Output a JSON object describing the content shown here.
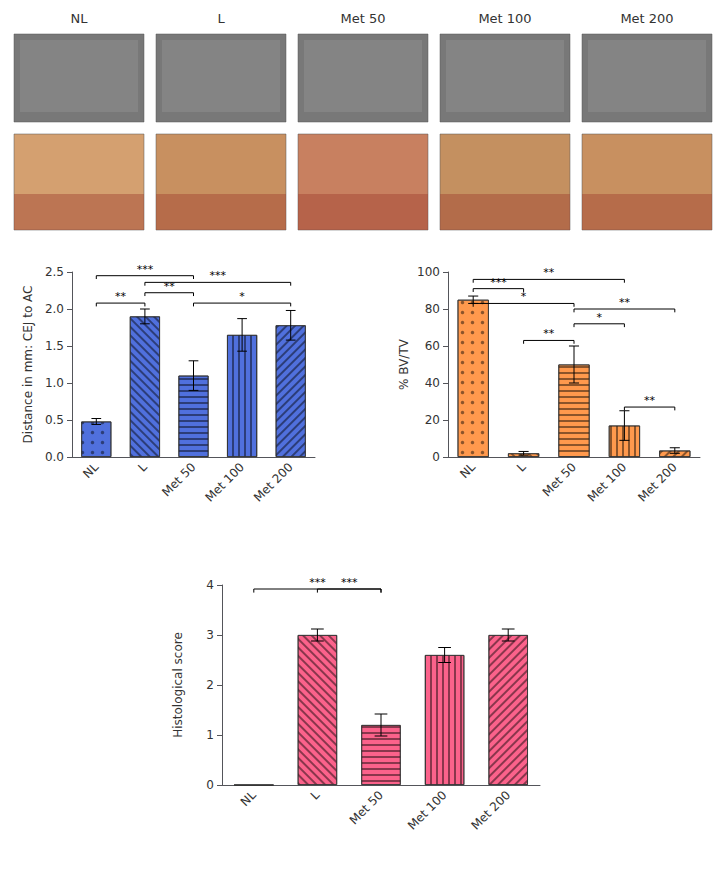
{
  "chart_data": [
    {
      "type": "image_panel",
      "annotations": [
        "NL",
        "L",
        "Met 50",
        "Met 100",
        "Met 200"
      ]
    },
    {
      "type": "bar",
      "categories": [
        "NL",
        "L",
        "Met 50",
        "Met 100",
        "Met 200"
      ],
      "values": [
        0.48,
        1.9,
        1.1,
        1.65,
        1.78
      ],
      "errors": [
        0.04,
        0.1,
        0.2,
        0.22,
        0.2
      ],
      "ylabel": "Distance in mm: CEJ to AC",
      "ylim": [
        0,
        2.5
      ],
      "yticks": [
        {
          "value": 0,
          "label": "0.0"
        },
        0.5,
        {
          "value": 1,
          "label": "1.0"
        },
        1.5,
        {
          "value": 2,
          "label": "2.0"
        },
        2.5
      ],
      "grid": false,
      "annotations": [
        {
          "from": "NL",
          "to": "L",
          "label": "**",
          "y": 2.08
        },
        {
          "from": "L",
          "to": "Met 50",
          "label": "**",
          "y": 2.22
        },
        {
          "from": "Met 50",
          "to": "Met 200",
          "label": "*",
          "y": 2.08
        },
        {
          "from": "L",
          "to": "Met 200",
          "label": "***",
          "y": 2.36
        },
        {
          "from": "NL",
          "to": "Met 50",
          "label": "***",
          "y": 2.45
        }
      ]
    },
    {
      "type": "bar",
      "categories": [
        "NL",
        "L",
        "Met 50",
        "Met 100",
        "Met 200"
      ],
      "values": [
        85,
        2,
        50,
        17,
        3.5
      ],
      "errors": [
        2,
        1,
        10,
        8,
        1.5
      ],
      "ylabel": "% BV/TV",
      "ylim": [
        0,
        100
      ],
      "yticks": [
        0,
        20,
        40,
        60,
        80,
        100
      ],
      "grid": false,
      "annotations": [
        {
          "from": "NL",
          "to": "L",
          "label": "***",
          "y": 91
        },
        {
          "from": "NL",
          "to": "Met 50",
          "label": "*",
          "y": 83
        },
        {
          "from": "NL",
          "to": "Met 100",
          "label": "**",
          "y": 96
        },
        {
          "from": "L",
          "to": "Met 50",
          "label": "**",
          "y": 63
        },
        {
          "from": "Met 100",
          "to": "Met 200",
          "label": "**",
          "y": 27
        },
        {
          "from": "Met 50",
          "to": "Met 100",
          "label": "*",
          "y": 72
        },
        {
          "from": "Met 50",
          "to": "Met 200",
          "label": "**",
          "y": 80
        }
      ]
    },
    {
      "type": "bar",
      "categories": [
        "NL",
        "L",
        "Met 50",
        "Met 100",
        "Met 200"
      ],
      "values": [
        0,
        3.0,
        1.2,
        2.6,
        3.0
      ],
      "errors": [
        0,
        0.12,
        0.22,
        0.15,
        0.12
      ],
      "ylabel": "Histological score",
      "ylim": [
        0,
        4
      ],
      "yticks": [
        0,
        1,
        2,
        3,
        4
      ],
      "grid": false,
      "annotations": [
        {
          "from": "NL",
          "to": "Met 50",
          "label": "***",
          "y": 3.92
        },
        {
          "from": "L",
          "to": "Met 50",
          "label": "***",
          "y": 3.92
        }
      ]
    }
  ]
}
